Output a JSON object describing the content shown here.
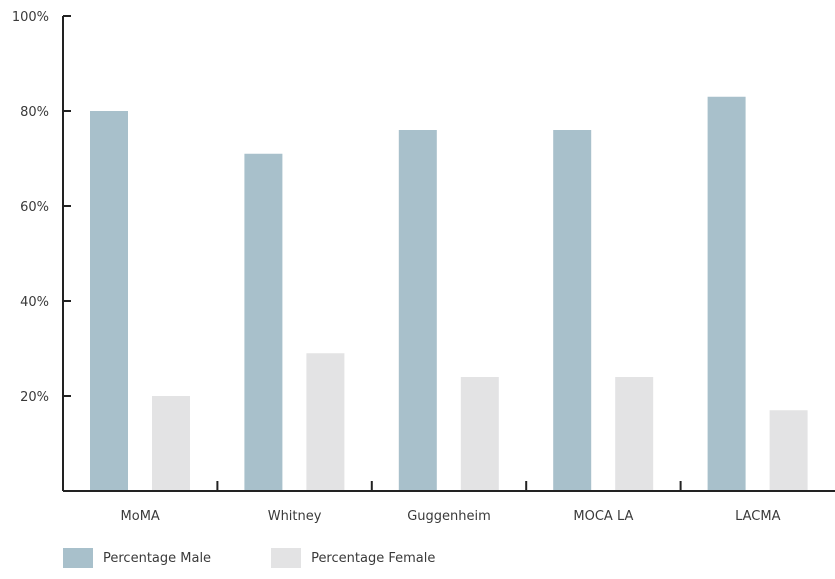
{
  "chart_data": {
    "type": "bar",
    "categories": [
      "MoMA",
      "Whitney",
      "Guggenheim",
      "MOCA LA",
      "LACMA"
    ],
    "series": [
      {
        "name": "Percentage Male",
        "values": [
          80,
          71,
          76,
          76,
          83
        ],
        "color": "#a8c0cb"
      },
      {
        "name": "Percentage Female",
        "values": [
          20,
          29,
          24,
          24,
          17
        ],
        "color": "#e3e3e4"
      }
    ],
    "yticks": [
      "20%",
      "40%",
      "60%",
      "80%",
      "100%"
    ],
    "ytick_values": [
      20,
      40,
      60,
      80,
      100
    ],
    "ylim": [
      0,
      100
    ],
    "grid": false,
    "legend_position": "bottom-left",
    "axis_color": "#222222"
  }
}
